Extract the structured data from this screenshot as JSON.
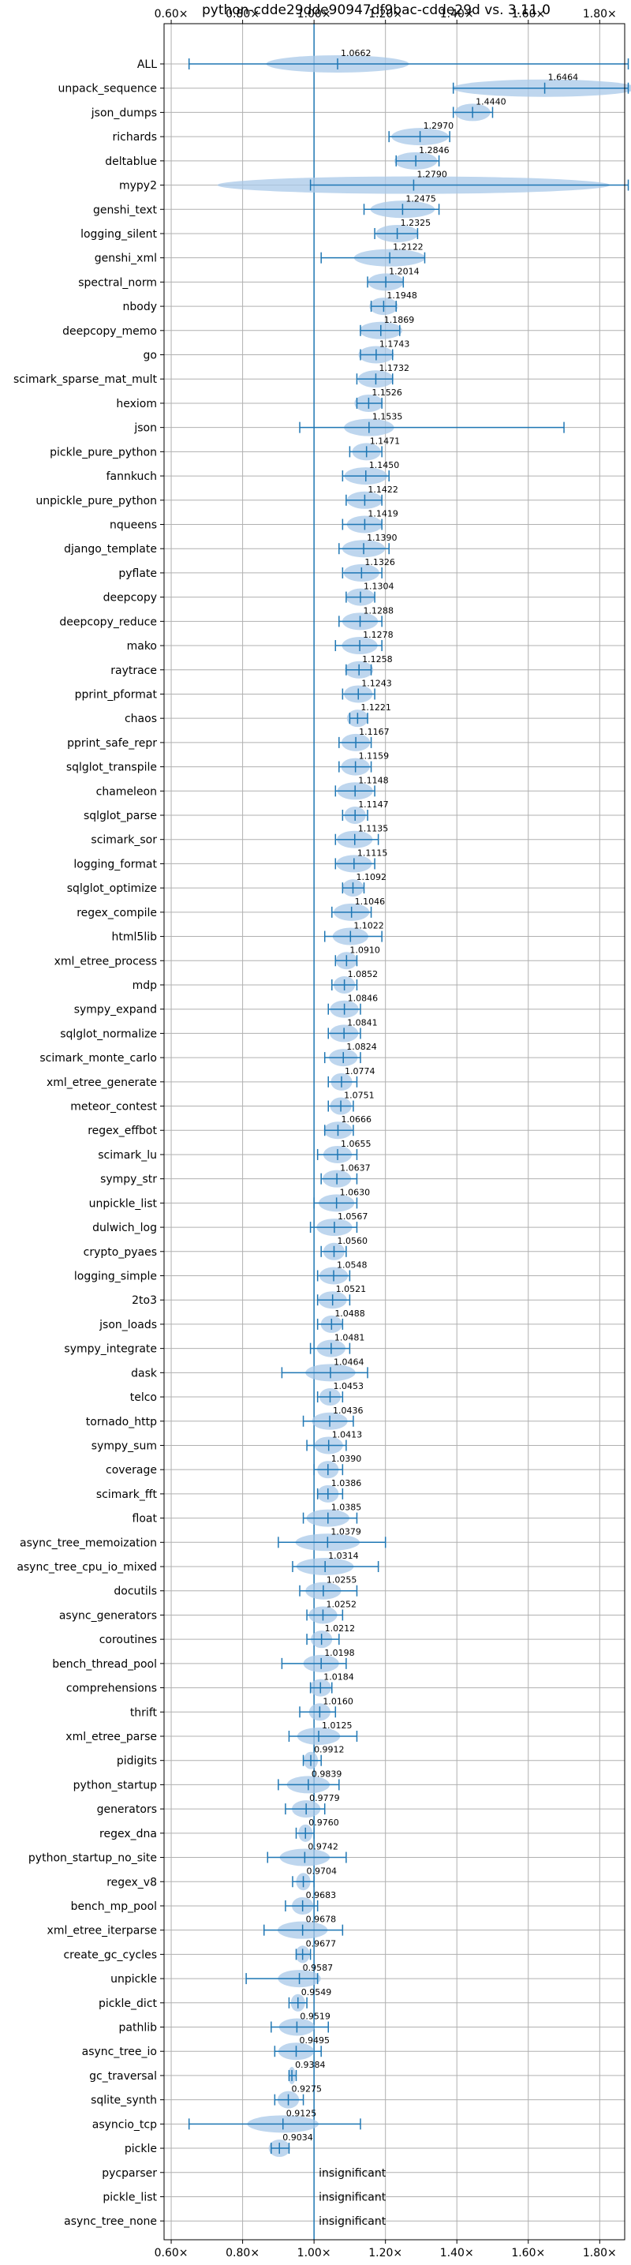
{
  "chart_data": {
    "type": "violin",
    "title": "python-cdde29dde90947df9bac-cdde29d vs. 3.11.0",
    "xlim": [
      0.58,
      1.87
    ],
    "xticks": [
      0.6,
      0.8,
      1.0,
      1.2,
      1.4,
      1.6,
      1.8
    ],
    "xtick_labels": [
      "0.60×",
      "0.80×",
      "1.00×",
      "1.20×",
      "1.40×",
      "1.60×",
      "1.80×"
    ],
    "reference_line": 1.0,
    "grid": true,
    "insignificant_text": "insignificant",
    "colors": {
      "violin": "#a8c8e8",
      "whisker": "#1f77b4",
      "axis": "#000000",
      "grid": "#b0b0b0"
    },
    "benchmarks": [
      {
        "name": "ALL",
        "value_label": "1.0662",
        "median": 1.066,
        "min": 0.65,
        "max": 1.88,
        "spread": 0.2
      },
      {
        "name": "unpack_sequence",
        "value_label": "1.6464",
        "median": 1.646,
        "min": 1.39,
        "max": 1.88,
        "spread": 0.26
      },
      {
        "name": "json_dumps",
        "value_label": "1.4440",
        "median": 1.444,
        "min": 1.39,
        "max": 1.5,
        "spread": 0.05
      },
      {
        "name": "richards",
        "value_label": "1.2970",
        "median": 1.297,
        "min": 1.21,
        "max": 1.38,
        "spread": 0.08
      },
      {
        "name": "deltablue",
        "value_label": "1.2846",
        "median": 1.285,
        "min": 1.23,
        "max": 1.35,
        "spread": 0.06
      },
      {
        "name": "mypy2",
        "value_label": "1.2790",
        "median": 1.279,
        "min": 0.99,
        "max": 1.88,
        "spread": 0.55
      },
      {
        "name": "genshi_text",
        "value_label": "1.2475",
        "median": 1.248,
        "min": 1.14,
        "max": 1.35,
        "spread": 0.09
      },
      {
        "name": "logging_silent",
        "value_label": "1.2325",
        "median": 1.233,
        "min": 1.17,
        "max": 1.29,
        "spread": 0.06
      },
      {
        "name": "genshi_xml",
        "value_label": "1.2122",
        "median": 1.212,
        "min": 1.02,
        "max": 1.31,
        "spread": 0.1
      },
      {
        "name": "spectral_norm",
        "value_label": "1.2014",
        "median": 1.201,
        "min": 1.15,
        "max": 1.25,
        "spread": 0.05
      },
      {
        "name": "nbody",
        "value_label": "1.1948",
        "median": 1.195,
        "min": 1.16,
        "max": 1.23,
        "spread": 0.04
      },
      {
        "name": "deepcopy_memo",
        "value_label": "1.1869",
        "median": 1.187,
        "min": 1.13,
        "max": 1.24,
        "spread": 0.06
      },
      {
        "name": "go",
        "value_label": "1.1743",
        "median": 1.174,
        "min": 1.13,
        "max": 1.22,
        "spread": 0.05
      },
      {
        "name": "scimark_sparse_mat_mult",
        "value_label": "1.1732",
        "median": 1.173,
        "min": 1.12,
        "max": 1.22,
        "spread": 0.05
      },
      {
        "name": "hexiom",
        "value_label": "1.1526",
        "median": 1.153,
        "min": 1.12,
        "max": 1.19,
        "spread": 0.04
      },
      {
        "name": "json",
        "value_label": "1.1535",
        "median": 1.154,
        "min": 0.96,
        "max": 1.7,
        "spread": 0.07
      },
      {
        "name": "pickle_pure_python",
        "value_label": "1.1471",
        "median": 1.147,
        "min": 1.1,
        "max": 1.19,
        "spread": 0.04
      },
      {
        "name": "fannkuch",
        "value_label": "1.1450",
        "median": 1.145,
        "min": 1.08,
        "max": 1.21,
        "spread": 0.06
      },
      {
        "name": "unpickle_pure_python",
        "value_label": "1.1422",
        "median": 1.142,
        "min": 1.09,
        "max": 1.19,
        "spread": 0.05
      },
      {
        "name": "nqueens",
        "value_label": "1.1419",
        "median": 1.142,
        "min": 1.08,
        "max": 1.19,
        "spread": 0.05
      },
      {
        "name": "django_template",
        "value_label": "1.1390",
        "median": 1.139,
        "min": 1.07,
        "max": 1.21,
        "spread": 0.06
      },
      {
        "name": "pyflate",
        "value_label": "1.1326",
        "median": 1.133,
        "min": 1.08,
        "max": 1.19,
        "spread": 0.05
      },
      {
        "name": "deepcopy",
        "value_label": "1.1304",
        "median": 1.13,
        "min": 1.09,
        "max": 1.17,
        "spread": 0.04
      },
      {
        "name": "deepcopy_reduce",
        "value_label": "1.1288",
        "median": 1.129,
        "min": 1.07,
        "max": 1.19,
        "spread": 0.05
      },
      {
        "name": "mako",
        "value_label": "1.1278",
        "median": 1.128,
        "min": 1.06,
        "max": 1.19,
        "spread": 0.05
      },
      {
        "name": "raytrace",
        "value_label": "1.1258",
        "median": 1.126,
        "min": 1.09,
        "max": 1.16,
        "spread": 0.04
      },
      {
        "name": "pprint_pformat",
        "value_label": "1.1243",
        "median": 1.124,
        "min": 1.08,
        "max": 1.17,
        "spread": 0.04
      },
      {
        "name": "chaos",
        "value_label": "1.1221",
        "median": 1.122,
        "min": 1.1,
        "max": 1.15,
        "spread": 0.03
      },
      {
        "name": "pprint_safe_repr",
        "value_label": "1.1167",
        "median": 1.117,
        "min": 1.07,
        "max": 1.16,
        "spread": 0.04
      },
      {
        "name": "sqlglot_transpile",
        "value_label": "1.1159",
        "median": 1.116,
        "min": 1.07,
        "max": 1.16,
        "spread": 0.04
      },
      {
        "name": "chameleon",
        "value_label": "1.1148",
        "median": 1.115,
        "min": 1.06,
        "max": 1.17,
        "spread": 0.05
      },
      {
        "name": "sqlglot_parse",
        "value_label": "1.1147",
        "median": 1.115,
        "min": 1.08,
        "max": 1.15,
        "spread": 0.03
      },
      {
        "name": "scimark_sor",
        "value_label": "1.1135",
        "median": 1.114,
        "min": 1.06,
        "max": 1.18,
        "spread": 0.05
      },
      {
        "name": "logging_format",
        "value_label": "1.1115",
        "median": 1.112,
        "min": 1.06,
        "max": 1.17,
        "spread": 0.05
      },
      {
        "name": "sqlglot_optimize",
        "value_label": "1.1092",
        "median": 1.109,
        "min": 1.08,
        "max": 1.14,
        "spread": 0.03
      },
      {
        "name": "regex_compile",
        "value_label": "1.1046",
        "median": 1.105,
        "min": 1.05,
        "max": 1.16,
        "spread": 0.05
      },
      {
        "name": "html5lib",
        "value_label": "1.1022",
        "median": 1.102,
        "min": 1.03,
        "max": 1.19,
        "spread": 0.05
      },
      {
        "name": "xml_etree_process",
        "value_label": "1.0910",
        "median": 1.091,
        "min": 1.06,
        "max": 1.12,
        "spread": 0.03
      },
      {
        "name": "mdp",
        "value_label": "1.0852",
        "median": 1.085,
        "min": 1.05,
        "max": 1.12,
        "spread": 0.03
      },
      {
        "name": "sympy_expand",
        "value_label": "1.0846",
        "median": 1.085,
        "min": 1.04,
        "max": 1.13,
        "spread": 0.04
      },
      {
        "name": "sqlglot_normalize",
        "value_label": "1.0841",
        "median": 1.084,
        "min": 1.04,
        "max": 1.13,
        "spread": 0.04
      },
      {
        "name": "scimark_monte_carlo",
        "value_label": "1.0824",
        "median": 1.082,
        "min": 1.03,
        "max": 1.13,
        "spread": 0.04
      },
      {
        "name": "xml_etree_generate",
        "value_label": "1.0774",
        "median": 1.077,
        "min": 1.04,
        "max": 1.12,
        "spread": 0.03
      },
      {
        "name": "meteor_contest",
        "value_label": "1.0751",
        "median": 1.075,
        "min": 1.04,
        "max": 1.11,
        "spread": 0.03
      },
      {
        "name": "regex_effbot",
        "value_label": "1.0666",
        "median": 1.067,
        "min": 1.03,
        "max": 1.11,
        "spread": 0.04
      },
      {
        "name": "scimark_lu",
        "value_label": "1.0655",
        "median": 1.066,
        "min": 1.01,
        "max": 1.12,
        "spread": 0.04
      },
      {
        "name": "sympy_str",
        "value_label": "1.0637",
        "median": 1.064,
        "min": 1.02,
        "max": 1.12,
        "spread": 0.04
      },
      {
        "name": "unpickle_list",
        "value_label": "1.0630",
        "median": 1.063,
        "min": 1.0,
        "max": 1.12,
        "spread": 0.05
      },
      {
        "name": "dulwich_log",
        "value_label": "1.0567",
        "median": 1.057,
        "min": 0.99,
        "max": 1.12,
        "spread": 0.05
      },
      {
        "name": "crypto_pyaes",
        "value_label": "1.0560",
        "median": 1.056,
        "min": 1.02,
        "max": 1.09,
        "spread": 0.03
      },
      {
        "name": "logging_simple",
        "value_label": "1.0548",
        "median": 1.055,
        "min": 1.01,
        "max": 1.1,
        "spread": 0.04
      },
      {
        "name": "2to3",
        "value_label": "1.0521",
        "median": 1.052,
        "min": 1.01,
        "max": 1.1,
        "spread": 0.04
      },
      {
        "name": "json_loads",
        "value_label": "1.0488",
        "median": 1.049,
        "min": 1.01,
        "max": 1.08,
        "spread": 0.03
      },
      {
        "name": "sympy_integrate",
        "value_label": "1.0481",
        "median": 1.048,
        "min": 0.99,
        "max": 1.1,
        "spread": 0.04
      },
      {
        "name": "dask",
        "value_label": "1.0464",
        "median": 1.046,
        "min": 0.91,
        "max": 1.15,
        "spread": 0.07
      },
      {
        "name": "telco",
        "value_label": "1.0453",
        "median": 1.045,
        "min": 1.01,
        "max": 1.08,
        "spread": 0.03
      },
      {
        "name": "tornado_http",
        "value_label": "1.0436",
        "median": 1.044,
        "min": 0.97,
        "max": 1.11,
        "spread": 0.05
      },
      {
        "name": "sympy_sum",
        "value_label": "1.0413",
        "median": 1.041,
        "min": 0.98,
        "max": 1.09,
        "spread": 0.04
      },
      {
        "name": "coverage",
        "value_label": "1.0390",
        "median": 1.039,
        "min": 1.0,
        "max": 1.08,
        "spread": 0.03
      },
      {
        "name": "scimark_fft",
        "value_label": "1.0386",
        "median": 1.039,
        "min": 1.01,
        "max": 1.08,
        "spread": 0.03
      },
      {
        "name": "float",
        "value_label": "1.0385",
        "median": 1.039,
        "min": 0.97,
        "max": 1.12,
        "spread": 0.06
      },
      {
        "name": "async_tree_memoization",
        "value_label": "1.0379",
        "median": 1.038,
        "min": 0.9,
        "max": 1.2,
        "spread": 0.09
      },
      {
        "name": "async_tree_cpu_io_mixed",
        "value_label": "1.0314",
        "median": 1.031,
        "min": 0.94,
        "max": 1.18,
        "spread": 0.08
      },
      {
        "name": "docutils",
        "value_label": "1.0255",
        "median": 1.026,
        "min": 0.96,
        "max": 1.12,
        "spread": 0.05
      },
      {
        "name": "async_generators",
        "value_label": "1.0252",
        "median": 1.025,
        "min": 0.98,
        "max": 1.08,
        "spread": 0.04
      },
      {
        "name": "coroutines",
        "value_label": "1.0212",
        "median": 1.021,
        "min": 0.98,
        "max": 1.07,
        "spread": 0.03
      },
      {
        "name": "bench_thread_pool",
        "value_label": "1.0198",
        "median": 1.02,
        "min": 0.91,
        "max": 1.09,
        "spread": 0.05
      },
      {
        "name": "comprehensions",
        "value_label": "1.0184",
        "median": 1.018,
        "min": 0.99,
        "max": 1.05,
        "spread": 0.03
      },
      {
        "name": "thrift",
        "value_label": "1.0160",
        "median": 1.016,
        "min": 0.96,
        "max": 1.06,
        "spread": 0.03
      },
      {
        "name": "xml_etree_parse",
        "value_label": "1.0125",
        "median": 1.013,
        "min": 0.93,
        "max": 1.12,
        "spread": 0.06
      },
      {
        "name": "pidigits",
        "value_label": "0.9912",
        "median": 0.991,
        "min": 0.97,
        "max": 1.02,
        "spread": 0.02
      },
      {
        "name": "python_startup",
        "value_label": "0.9839",
        "median": 0.984,
        "min": 0.9,
        "max": 1.07,
        "spread": 0.06
      },
      {
        "name": "generators",
        "value_label": "0.9779",
        "median": 0.978,
        "min": 0.92,
        "max": 1.03,
        "spread": 0.04
      },
      {
        "name": "regex_dna",
        "value_label": "0.9760",
        "median": 0.976,
        "min": 0.95,
        "max": 1.0,
        "spread": 0.02
      },
      {
        "name": "python_startup_no_site",
        "value_label": "0.9742",
        "median": 0.974,
        "min": 0.87,
        "max": 1.09,
        "spread": 0.07
      },
      {
        "name": "regex_v8",
        "value_label": "0.9704",
        "median": 0.97,
        "min": 0.94,
        "max": 1.0,
        "spread": 0.02
      },
      {
        "name": "bench_mp_pool",
        "value_label": "0.9683",
        "median": 0.968,
        "min": 0.92,
        "max": 1.01,
        "spread": 0.03
      },
      {
        "name": "xml_etree_iterparse",
        "value_label": "0.9678",
        "median": 0.968,
        "min": 0.86,
        "max": 1.08,
        "spread": 0.07
      },
      {
        "name": "create_gc_cycles",
        "value_label": "0.9677",
        "median": 0.968,
        "min": 0.95,
        "max": 0.99,
        "spread": 0.02
      },
      {
        "name": "unpickle",
        "value_label": "0.9587",
        "median": 0.959,
        "min": 0.81,
        "max": 1.01,
        "spread": 0.06
      },
      {
        "name": "pickle_dict",
        "value_label": "0.9549",
        "median": 0.955,
        "min": 0.93,
        "max": 0.98,
        "spread": 0.02
      },
      {
        "name": "pathlib",
        "value_label": "0.9519",
        "median": 0.952,
        "min": 0.88,
        "max": 1.04,
        "spread": 0.05
      },
      {
        "name": "async_tree_io",
        "value_label": "0.9495",
        "median": 0.95,
        "min": 0.89,
        "max": 1.02,
        "spread": 0.05
      },
      {
        "name": "gc_traversal",
        "value_label": "0.9384",
        "median": 0.938,
        "min": 0.93,
        "max": 0.95,
        "spread": 0.01
      },
      {
        "name": "sqlite_synth",
        "value_label": "0.9275",
        "median": 0.928,
        "min": 0.89,
        "max": 0.97,
        "spread": 0.03
      },
      {
        "name": "asyncio_tcp",
        "value_label": "0.9125",
        "median": 0.913,
        "min": 0.65,
        "max": 1.13,
        "spread": 0.1
      },
      {
        "name": "pickle",
        "value_label": "0.9034",
        "median": 0.903,
        "min": 0.88,
        "max": 0.93,
        "spread": 0.03
      },
      {
        "name": "pycparser",
        "value_label": "",
        "insignificant": true
      },
      {
        "name": "pickle_list",
        "value_label": "",
        "insignificant": true
      },
      {
        "name": "async_tree_none",
        "value_label": "",
        "insignificant": true
      }
    ]
  }
}
